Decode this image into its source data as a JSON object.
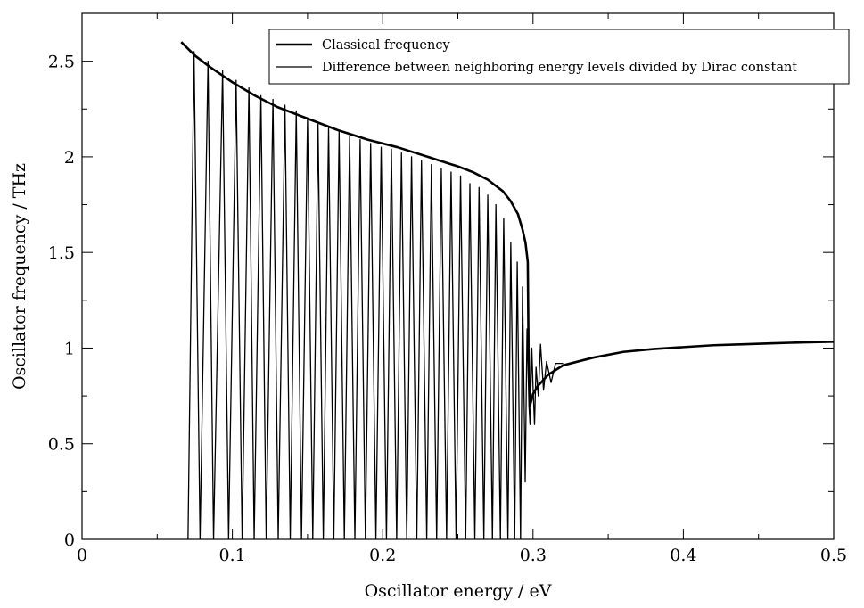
{
  "chart_data": {
    "type": "line",
    "xlabel": "Oscillator energy / eV",
    "ylabel": "Oscillator frequency / THz",
    "xlim": [
      0,
      0.5
    ],
    "ylim": [
      0,
      2.75
    ],
    "x_ticks": [
      0,
      0.1,
      0.2,
      0.3,
      0.4,
      0.5
    ],
    "x_tick_labels": [
      "0",
      "0.1",
      "0.2",
      "0.3",
      "0.4",
      "0.5"
    ],
    "y_ticks": [
      0,
      0.5,
      1,
      1.5,
      2,
      2.5
    ],
    "y_tick_labels": [
      "0",
      "0.5",
      "1",
      "1.5",
      "2",
      "2.5"
    ],
    "x_minor_ticks": [
      0.05,
      0.15,
      0.25,
      0.35,
      0.45
    ],
    "y_minor_ticks": [
      0.25,
      0.75,
      1.25,
      1.75,
      2.25
    ],
    "grid": false,
    "legend_position": "top-right",
    "series": [
      {
        "name": "Classical frequency",
        "style": "thick",
        "color": "#000000",
        "x": [
          0.066,
          0.075,
          0.085,
          0.1,
          0.115,
          0.13,
          0.15,
          0.17,
          0.19,
          0.21,
          0.23,
          0.25,
          0.26,
          0.27,
          0.28,
          0.285,
          0.29,
          0.293,
          0.295,
          0.2965,
          0.297,
          0.298,
          0.3,
          0.303,
          0.31,
          0.32,
          0.34,
          0.36,
          0.38,
          0.4,
          0.42,
          0.44,
          0.46,
          0.48,
          0.5
        ],
        "y": [
          2.6,
          2.53,
          2.47,
          2.39,
          2.32,
          2.26,
          2.2,
          2.14,
          2.09,
          2.05,
          2.0,
          1.95,
          1.92,
          1.88,
          1.82,
          1.77,
          1.7,
          1.62,
          1.55,
          1.45,
          1.0,
          0.7,
          0.76,
          0.8,
          0.86,
          0.91,
          0.95,
          0.98,
          0.995,
          1.005,
          1.015,
          1.02,
          1.025,
          1.03,
          1.033
        ]
      },
      {
        "name": "Difference between neighboring energy levels divided by Dirac constant",
        "style": "thin",
        "color": "#000000",
        "x": [
          0.0705,
          0.0745,
          0.0785,
          0.0838,
          0.0875,
          0.0935,
          0.0975,
          0.1025,
          0.1065,
          0.111,
          0.1145,
          0.119,
          0.1225,
          0.127,
          0.1305,
          0.135,
          0.1385,
          0.1425,
          0.146,
          0.15,
          0.1535,
          0.157,
          0.1605,
          0.164,
          0.1675,
          0.171,
          0.1745,
          0.178,
          0.1815,
          0.185,
          0.1885,
          0.192,
          0.1955,
          0.199,
          0.2025,
          0.2058,
          0.2093,
          0.2125,
          0.216,
          0.2192,
          0.2227,
          0.2258,
          0.2293,
          0.2324,
          0.2359,
          0.239,
          0.2425,
          0.2455,
          0.2488,
          0.2518,
          0.2552,
          0.258,
          0.2613,
          0.2641,
          0.2673,
          0.2699,
          0.273,
          0.2753,
          0.2783,
          0.2805,
          0.2833,
          0.2852,
          0.2878,
          0.2895,
          0.2917,
          0.293,
          0.2948,
          0.296,
          0.2973,
          0.298,
          0.2992,
          0.3,
          0.301,
          0.302,
          0.3035,
          0.305,
          0.307,
          0.309,
          0.312,
          0.315,
          0.32
        ],
        "y": [
          0.0,
          2.55,
          0.0,
          2.5,
          0.0,
          2.45,
          0.0,
          2.4,
          0.0,
          2.36,
          0.0,
          2.32,
          0.0,
          2.3,
          0.0,
          2.27,
          0.0,
          2.24,
          0.0,
          2.2,
          0.0,
          2.17,
          0.0,
          2.15,
          0.0,
          2.13,
          0.0,
          2.11,
          0.0,
          2.09,
          0.0,
          2.07,
          0.0,
          2.05,
          0.0,
          2.04,
          0.0,
          2.02,
          0.0,
          2.0,
          0.0,
          1.98,
          0.0,
          1.96,
          0.0,
          1.94,
          0.0,
          1.92,
          0.0,
          1.9,
          0.0,
          1.86,
          0.0,
          1.84,
          0.0,
          1.8,
          0.0,
          1.75,
          0.0,
          1.68,
          0.0,
          1.55,
          0.0,
          1.45,
          0.0,
          1.32,
          0.3,
          1.1,
          0.7,
          0.6,
          1.0,
          0.8,
          0.6,
          0.9,
          0.75,
          1.02,
          0.78,
          0.93,
          0.82,
          0.92,
          0.92
        ]
      }
    ]
  }
}
